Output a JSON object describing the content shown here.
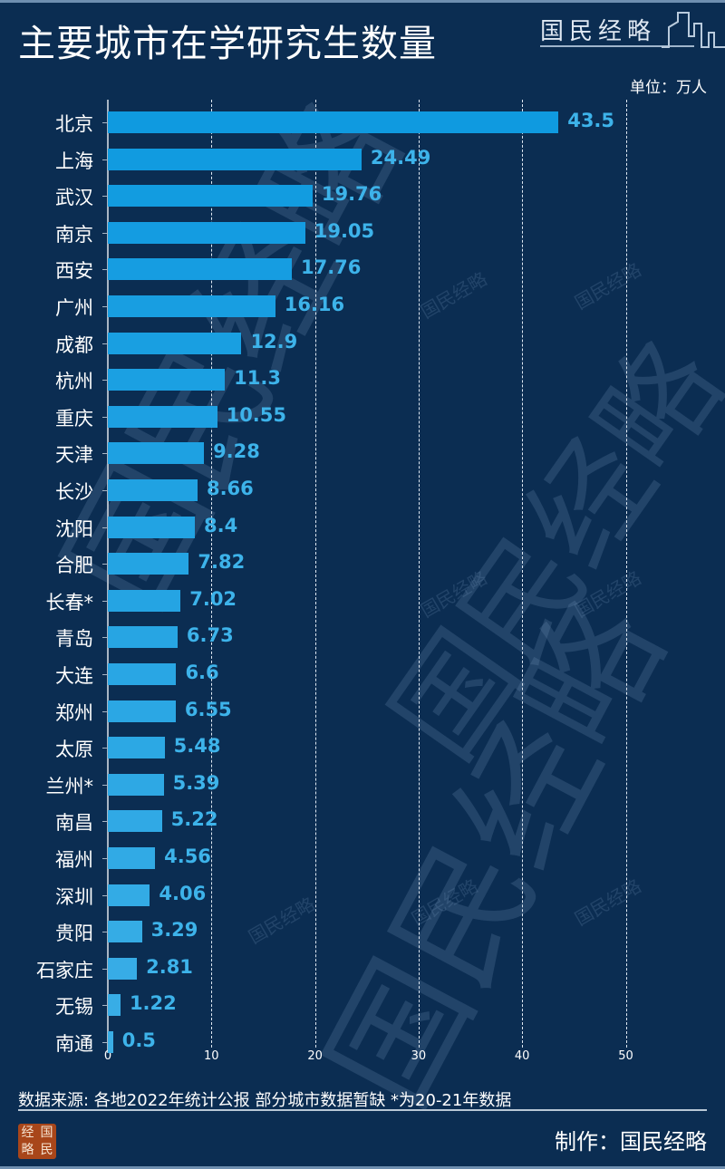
{
  "header": {
    "title": "主要城市在学研究生数量",
    "brand": "国民经略",
    "unit": "单位：万人"
  },
  "footer": {
    "source": "数据来源: 各地2022年统计公报 部分城市数据暂缺 *为20-21年数据",
    "credit": "制作：国民经略",
    "seal_chars": [
      "经",
      "国",
      "略",
      "民"
    ]
  },
  "watermark": {
    "large": "国民经略",
    "small": "国民经略"
  },
  "colors": {
    "background": "#0b2d52",
    "bar_top": "#0f9ae0",
    "bar_bottom": "#3aaee6",
    "value_label": "#3db3ea",
    "seal": "#a8461a"
  },
  "chart_data": {
    "type": "bar",
    "orientation": "horizontal",
    "title": "主要城市在学研究生数量",
    "unit": "万人",
    "xlabel": "",
    "ylabel": "",
    "xlim": [
      0,
      50
    ],
    "xticks": [
      0,
      10,
      20,
      30,
      40,
      50
    ],
    "grid": "vertical dashed",
    "categories": [
      "北京",
      "上海",
      "武汉",
      "南京",
      "西安",
      "广州",
      "成都",
      "杭州",
      "重庆",
      "天津",
      "长沙",
      "沈阳",
      "合肥",
      "长春*",
      "青岛",
      "大连",
      "郑州",
      "太原",
      "兰州*",
      "南昌",
      "福州",
      "深圳",
      "贵阳",
      "石家庄",
      "无锡",
      "南通"
    ],
    "values": [
      43.5,
      24.49,
      19.76,
      19.05,
      17.76,
      16.16,
      12.9,
      11.3,
      10.55,
      9.28,
      8.66,
      8.4,
      7.82,
      7.02,
      6.73,
      6.6,
      6.55,
      5.48,
      5.39,
      5.22,
      4.56,
      4.06,
      3.29,
      2.81,
      1.22,
      0.5
    ],
    "value_labels": [
      "43.5",
      "24.49",
      "19.76",
      "19.05",
      "17.76",
      "16.16",
      "12.9",
      "11.3",
      "10.55",
      "9.28",
      "8.66",
      "8.4",
      "7.82",
      "7.02",
      "6.73",
      "6.6",
      "6.55",
      "5.48",
      "5.39",
      "5.22",
      "4.56",
      "4.06",
      "3.29",
      "2.81",
      "1.22",
      "0.5"
    ],
    "notes": "*为20-21年数据",
    "source": "各地2022年统计公报"
  }
}
